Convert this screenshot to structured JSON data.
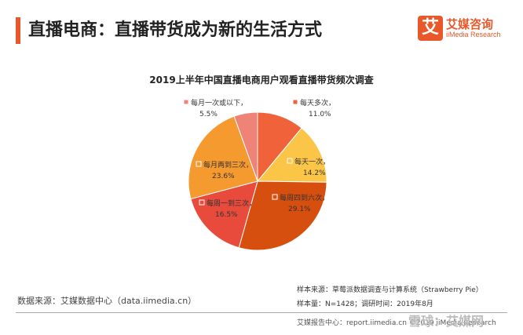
{
  "header": {
    "title": "直播电商：直播带货成为新的生活方式"
  },
  "logo": {
    "mark": "艾",
    "name_cn": "艾媒咨询",
    "name_en": "iiMedia Research"
  },
  "chart_data": {
    "type": "pie",
    "title": "2019上半年中国直播电商用户观看直播带货频次调查",
    "slices": [
      {
        "label": "每天多次，",
        "value": 11.0,
        "value_label": "11.0%",
        "color": "#f0623a"
      },
      {
        "label": "每天一次，",
        "value": 14.2,
        "value_label": "14.2%",
        "color": "#fbc648"
      },
      {
        "label": "每周四到六次，",
        "value": 29.1,
        "value_label": "29.1%",
        "color": "#d64f0f"
      },
      {
        "label": "每周一到三次，",
        "value": 16.5,
        "value_label": "16.5%",
        "color": "#e84a3c"
      },
      {
        "label": "每月两到三次，",
        "value": 23.6,
        "value_label": "23.6%",
        "color": "#f59a2f"
      },
      {
        "label": "每月一次或以下，",
        "value": 5.5,
        "value_label": "5.5%",
        "color": "#ef8377"
      }
    ]
  },
  "source": {
    "left": "数据来源：艾媒数据中心（data.iimedia.cn）",
    "right_line1": "样本来源：草莓派数据调查与计算系统（Strawberry Pie）",
    "right_line2": "样本量：N=1428；调研时间：2019年8月"
  },
  "footer": {
    "text": "艾媒报告中心：report.iimedia.cn ©2019 iiMedia Research",
    "watermark": "雪球：艾媒网"
  }
}
